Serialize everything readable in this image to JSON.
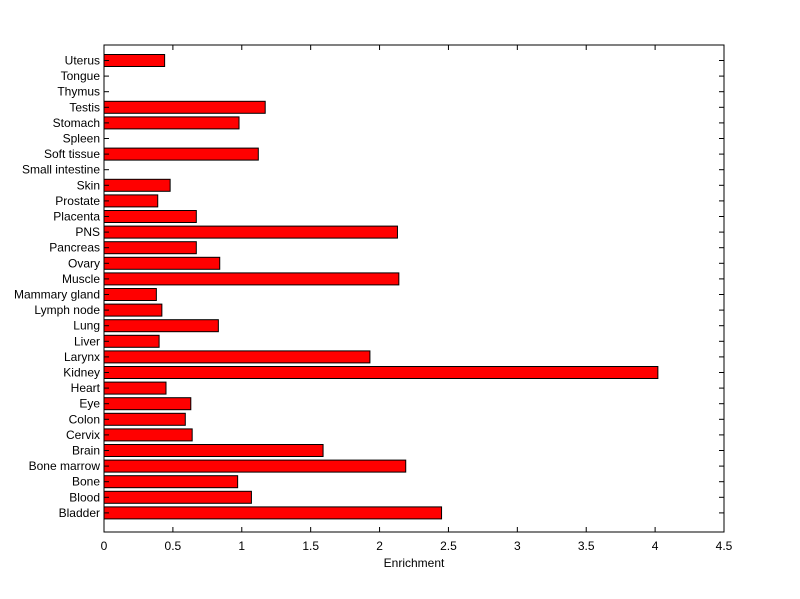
{
  "chart_data": {
    "type": "bar",
    "orientation": "horizontal",
    "title": "",
    "xlabel": "Enrichment",
    "ylabel": "",
    "xlim": [
      0,
      4.5
    ],
    "xticks": [
      "0",
      "0.5",
      "1",
      "1.5",
      "2",
      "2.5",
      "3",
      "3.5",
      "4",
      "4.5"
    ],
    "grid": false,
    "bar_color": "#ff0000",
    "categories": [
      "Uterus",
      "Tongue",
      "Thymus",
      "Testis",
      "Stomach",
      "Spleen",
      "Soft tissue",
      "Small intestine",
      "Skin",
      "Prostate",
      "Placenta",
      "PNS",
      "Pancreas",
      "Ovary",
      "Muscle",
      "Mammary gland",
      "Lymph node",
      "Lung",
      "Liver",
      "Larynx",
      "Kidney",
      "Heart",
      "Eye",
      "Colon",
      "Cervix",
      "Brain",
      "Bone marrow",
      "Bone",
      "Blood",
      "Bladder"
    ],
    "values": [
      0.44,
      0,
      0,
      1.17,
      0.98,
      0,
      1.12,
      0,
      0.48,
      0.39,
      0.67,
      2.13,
      0.67,
      0.84,
      2.14,
      0.38,
      0.42,
      0.83,
      0.4,
      1.93,
      4.02,
      0.45,
      0.63,
      0.59,
      0.64,
      1.59,
      2.19,
      0.97,
      1.07,
      2.45
    ]
  }
}
